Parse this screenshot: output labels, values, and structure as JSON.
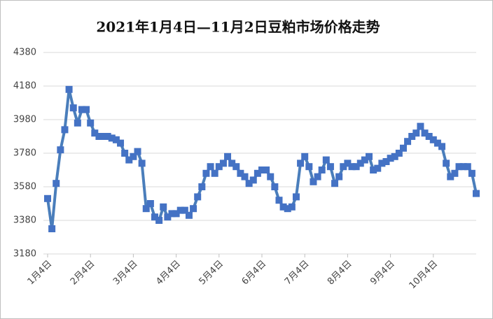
{
  "chart_data": {
    "type": "line",
    "title": "2021年1月4日—11月2日豆粕市场价格走势",
    "categories": [
      "1月4日",
      null,
      null,
      null,
      null,
      null,
      null,
      null,
      null,
      null,
      "2月4日",
      null,
      null,
      null,
      null,
      null,
      null,
      null,
      null,
      null,
      "3月4日",
      null,
      null,
      null,
      null,
      null,
      null,
      null,
      null,
      null,
      "4月4日",
      null,
      null,
      null,
      null,
      null,
      null,
      null,
      null,
      null,
      "5月4日",
      null,
      null,
      null,
      null,
      null,
      null,
      null,
      null,
      null,
      "6月4日",
      null,
      null,
      null,
      null,
      null,
      null,
      null,
      null,
      null,
      "7月4日",
      null,
      null,
      null,
      null,
      null,
      null,
      null,
      null,
      null,
      "8月4日",
      null,
      null,
      null,
      null,
      null,
      null,
      null,
      null,
      null,
      "9月4日",
      null,
      null,
      null,
      null,
      null,
      null,
      null,
      null,
      null,
      "10月4日",
      null,
      null,
      null,
      null,
      null,
      null,
      null,
      null,
      null,
      null
    ],
    "values": [
      3510,
      3330,
      3600,
      3800,
      3920,
      4160,
      4050,
      3960,
      4040,
      4040,
      3960,
      3900,
      3880,
      3880,
      3880,
      3870,
      3860,
      3840,
      3780,
      3740,
      3760,
      3790,
      3720,
      3450,
      3480,
      3400,
      3380,
      3460,
      3400,
      3420,
      3420,
      3440,
      3440,
      3410,
      3450,
      3520,
      3580,
      3660,
      3700,
      3660,
      3700,
      3720,
      3760,
      3720,
      3700,
      3660,
      3640,
      3600,
      3620,
      3660,
      3680,
      3680,
      3640,
      3580,
      3500,
      3460,
      3450,
      3460,
      3520,
      3720,
      3760,
      3700,
      3610,
      3640,
      3680,
      3740,
      3700,
      3600,
      3640,
      3700,
      3720,
      3700,
      3700,
      3720,
      3740,
      3760,
      3680,
      3690,
      3720,
      3730,
      3750,
      3760,
      3780,
      3810,
      3850,
      3880,
      3900,
      3940,
      3900,
      3880,
      3860,
      3840,
      3820,
      3720,
      3640,
      3660,
      3700,
      3700,
      3700,
      3660,
      3540
    ],
    "color": "#4a7ebb",
    "ylim": [
      3180,
      4380
    ],
    "yticks": [
      3180,
      3380,
      3580,
      3780,
      3980,
      4180,
      4380
    ],
    "grid": true
  }
}
